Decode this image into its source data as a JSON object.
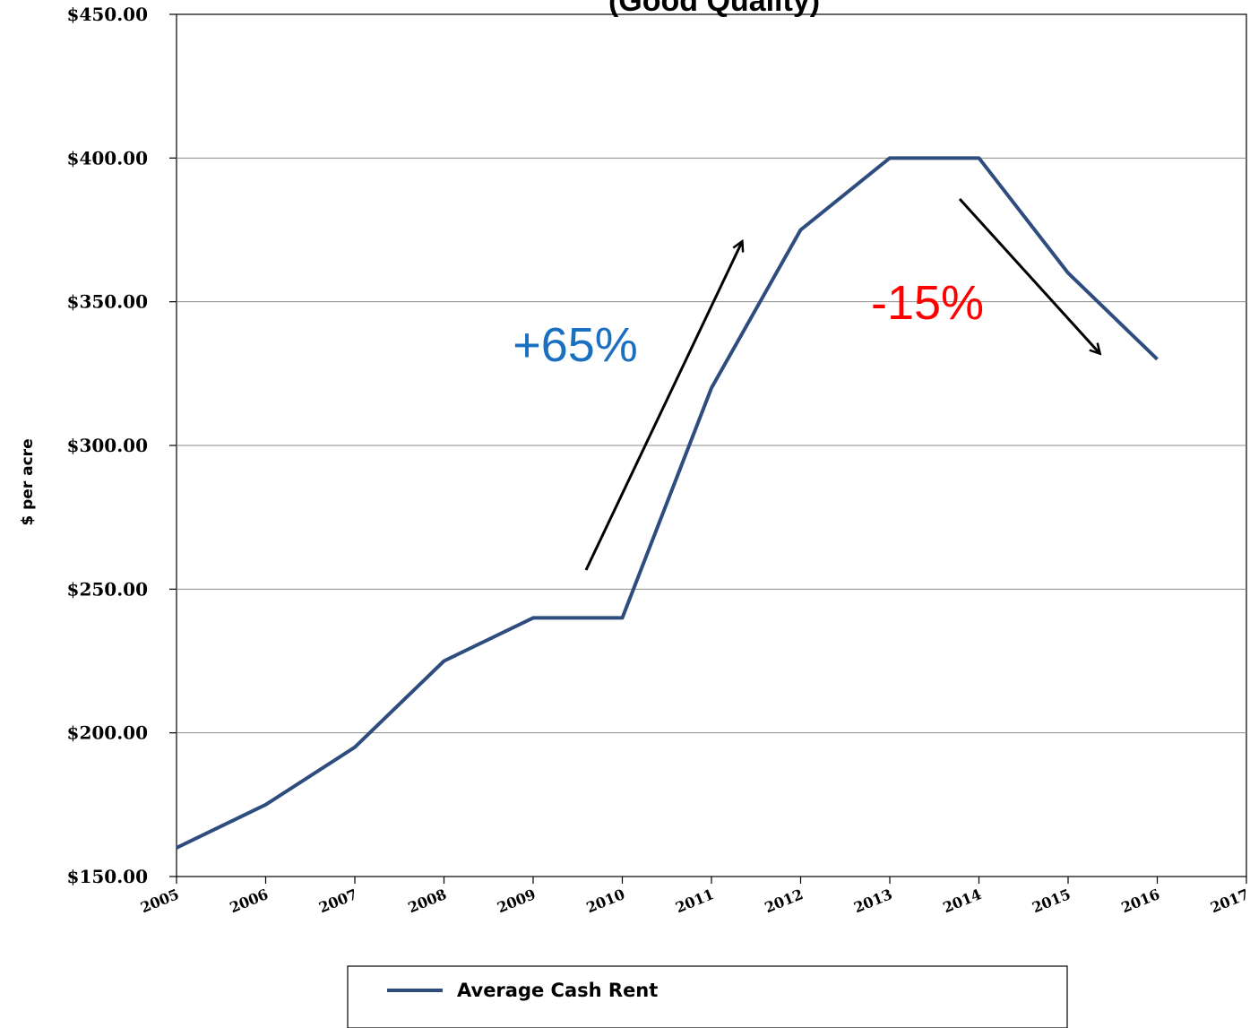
{
  "chart_data": {
    "type": "line",
    "title": "(Good Quality)",
    "ylabel": "$ per acre",
    "xlabel": "",
    "x": [
      "2005",
      "2006",
      "2007",
      "2008",
      "2009",
      "2010",
      "2011",
      "2012",
      "2013",
      "2014",
      "2015",
      "2016",
      "2017"
    ],
    "series": [
      {
        "name": "Average Cash Rent",
        "color": "#2e4d7e",
        "values": [
          160,
          175,
          195,
          225,
          240,
          240,
          320,
          375,
          400,
          400,
          360,
          330,
          null
        ]
      }
    ],
    "ylim": [
      150,
      450
    ],
    "yticks": [
      "$150.00",
      "$200.00",
      "$250.00",
      "$300.00",
      "$350.00",
      "$400.00",
      "$450.00"
    ],
    "ytick_values": [
      150,
      200,
      250,
      300,
      350,
      400,
      450
    ],
    "grid": true,
    "legend_position": "bottom",
    "annotations": [
      {
        "text": "+65%",
        "color": "#1a6fc0"
      },
      {
        "text": "-15%",
        "color": "#ff0000"
      }
    ]
  }
}
